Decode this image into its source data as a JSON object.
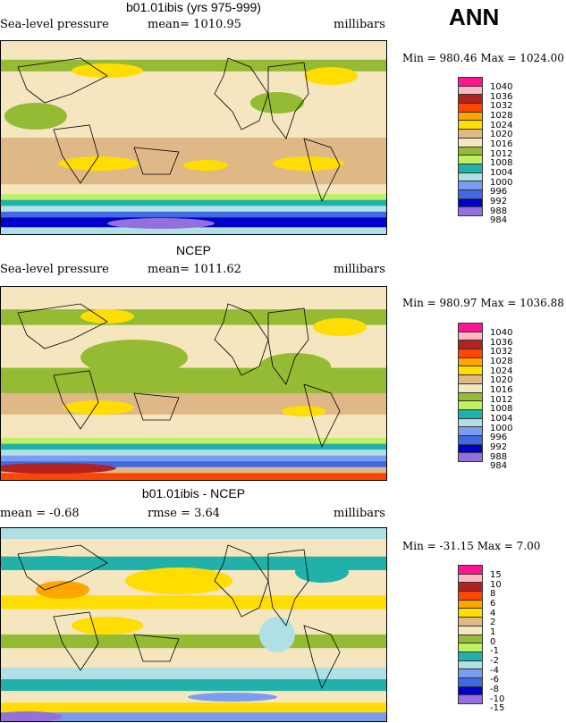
{
  "season": "ANN",
  "colors": [
    "#ff1493",
    "#ffb6c1",
    "#b22222",
    "#ff4500",
    "#ffa500",
    "#ffdd00",
    "#deb887",
    "#f5e6c0",
    "#94bb33",
    "#c0ef60",
    "#20b2aa",
    "#b0e0e6",
    "#7b9df0",
    "#4169e1",
    "#0000cd",
    "#9370db"
  ],
  "chart_data": [
    {
      "type": "heatmap",
      "title": "b01.01ibis (yrs 975-999)",
      "left_label": "Sea-level pressure",
      "center_label": "mean= 1010.95",
      "units": "millibars",
      "minmax": "Min = 980.46 Max = 1024.00",
      "mean": 1010.95,
      "min": 980.46,
      "max": 1024.0,
      "legend_labels": [
        "1040",
        "1036",
        "1032",
        "1028",
        "1024",
        "1020",
        "1016",
        "1012",
        "1008",
        "1004",
        "1000",
        "996",
        "992",
        "988",
        "984"
      ]
    },
    {
      "type": "heatmap",
      "title": "NCEP",
      "left_label": "Sea-level pressure",
      "center_label": "mean= 1011.62",
      "units": "millibars",
      "minmax": "Min = 980.97 Max = 1036.88",
      "mean": 1011.62,
      "min": 980.97,
      "max": 1036.88,
      "legend_labels": [
        "1040",
        "1036",
        "1032",
        "1028",
        "1024",
        "1020",
        "1016",
        "1012",
        "1008",
        "1004",
        "1000",
        "996",
        "992",
        "988",
        "984"
      ]
    },
    {
      "type": "heatmap",
      "title": "b01.01ibis - NCEP",
      "left_label": "mean =   -0.68",
      "center_label": "rmse =    3.64",
      "units": "millibars",
      "minmax": "Min = -31.15 Max =    7.00",
      "mean": -0.68,
      "rmse": 3.64,
      "min": -31.15,
      "max": 7.0,
      "legend_labels": [
        "15",
        "10",
        "8",
        "6",
        "4",
        "2",
        "1",
        "0",
        "-1",
        "-2",
        "-4",
        "-6",
        "-8",
        "-10",
        "-15"
      ]
    }
  ]
}
